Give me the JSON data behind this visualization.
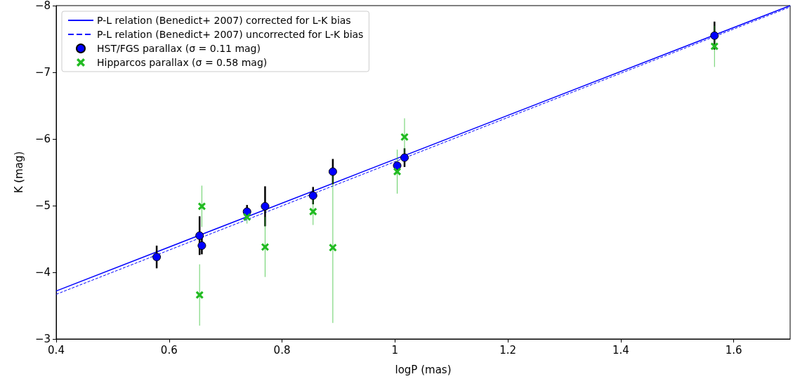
{
  "chart_data": {
    "type": "scatter",
    "xlabel": "logP (mas)",
    "ylabel": "K (mag)",
    "xlim": [
      0.4,
      1.7
    ],
    "xticks": [
      0.4,
      0.6,
      0.8,
      1.0,
      1.2,
      1.4,
      1.6
    ],
    "ylim": [
      -3,
      -8
    ],
    "yticks": [
      -3,
      -4,
      -5,
      -6,
      -7,
      -8
    ],
    "grid": false,
    "legend": "top left",
    "series": [
      {
        "name": "P-L relation (Benedict+ 2007) corrected for L-K bias",
        "type": "line",
        "color": "#0000ff",
        "line_style": "solid",
        "marker": "none",
        "x": [
          0.4,
          1.7
        ],
        "values": [
          -3.72,
          -8.0
        ]
      },
      {
        "name": "P-L relation (Benedict+ 2007) uncorrected for L-K bias",
        "type": "line",
        "color": "#0000ff",
        "line_style": "dashed",
        "marker": "none",
        "x": [
          0.4,
          1.7
        ],
        "values": [
          -3.67,
          -7.98
        ]
      },
      {
        "name": "HST/FGS parallax (σ = 0.11 mag)",
        "color": "#0000ff",
        "marker": "circle",
        "x": [
          0.578,
          0.654,
          0.658,
          0.738,
          0.77,
          0.855,
          0.89,
          1.004,
          1.017,
          1.566
        ],
        "values": [
          -4.23,
          -4.55,
          -4.4,
          -4.91,
          -4.99,
          -5.15,
          -5.51,
          -5.6,
          -5.72,
          -7.55
        ],
        "errors": [
          0.17,
          0.29,
          0.13,
          0.1,
          0.3,
          0.13,
          0.19,
          0.05,
          0.14,
          0.21
        ]
      },
      {
        "name": "Hipparcos parallax (σ = 0.58 mag)",
        "color": "#22bb22",
        "marker": "cross",
        "x": [
          0.654,
          0.658,
          0.738,
          0.77,
          0.855,
          0.89,
          1.004,
          1.017,
          1.566
        ],
        "values": [
          -3.66,
          -4.99,
          -4.83,
          -4.38,
          -4.91,
          -4.37,
          -5.51,
          -6.03,
          -7.39
        ],
        "errors": [
          0.46,
          0.31,
          0.1,
          0.45,
          0.2,
          1.13,
          0.33,
          0.28,
          0.31
        ]
      }
    ]
  }
}
